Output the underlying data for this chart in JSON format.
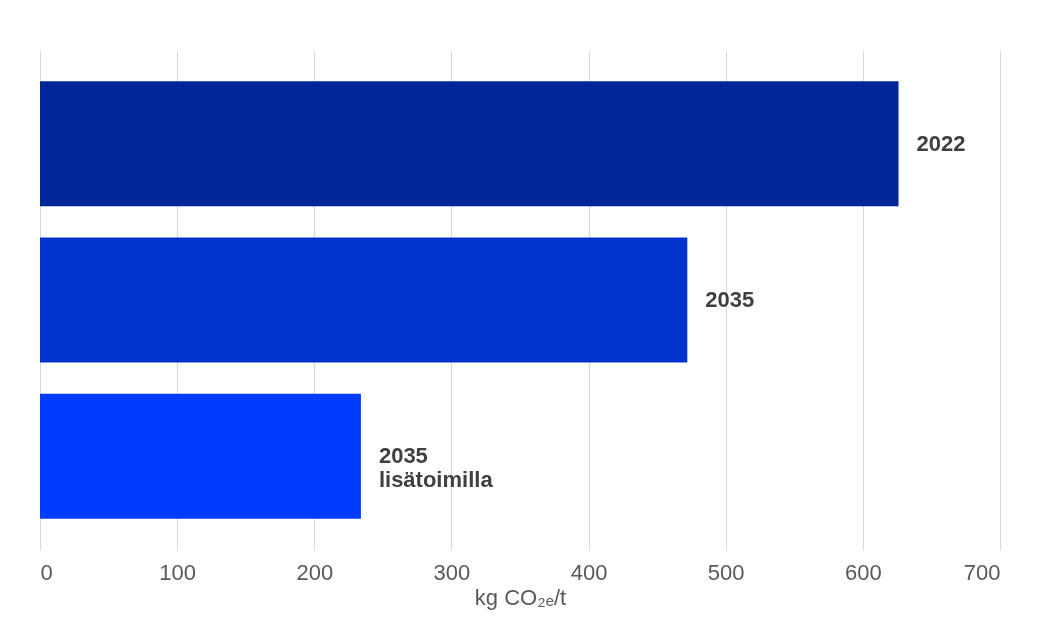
{
  "chart_data": {
    "type": "bar",
    "orientation": "horizontal",
    "categories": [
      "2022",
      "2035",
      "2035 lisätoimilla"
    ],
    "values": [
      626,
      472,
      234
    ],
    "colors": [
      "#002699",
      "#0033cc",
      "#003cff"
    ],
    "xlabel": "kg CO₂ₑ/t",
    "xlim": [
      0,
      700
    ],
    "xticks": [
      0,
      100,
      200,
      300,
      400,
      500,
      600,
      700
    ],
    "grid": "x",
    "tick_labels": "x"
  }
}
